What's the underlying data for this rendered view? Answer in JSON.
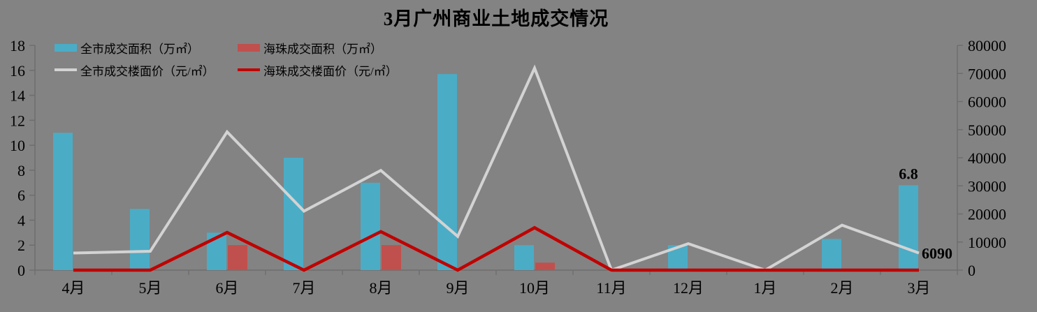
{
  "title": "3月广州商业土地成交情况",
  "colors": {
    "background": "#838383",
    "axis": "#6E6E6E",
    "text": "#000000",
    "citywide_area_bar": "#4BACC6",
    "haizhu_area_bar": "#C0504D",
    "citywide_price_line": "#D3D3D3",
    "haizhu_price_line": "#C00000"
  },
  "chart_data": {
    "type": "combo-bar-line",
    "categories": [
      "4月",
      "5月",
      "6月",
      "7月",
      "8月",
      "9月",
      "10月",
      "11月",
      "12月",
      "1月",
      "2月",
      "3月"
    ],
    "series": [
      {
        "name": "全市成交面积（万㎡）",
        "type": "bar",
        "axis": "left",
        "color": "#4BACC6",
        "values": [
          11,
          4.9,
          3,
          9,
          7,
          15.7,
          2,
          0,
          2,
          0,
          2.5,
          6.8
        ]
      },
      {
        "name": "海珠成交面积（万㎡）",
        "type": "bar",
        "axis": "left",
        "color": "#C0504D",
        "values": [
          0,
          0,
          2,
          0,
          2,
          0,
          0.6,
          0,
          0,
          0,
          0,
          0
        ]
      },
      {
        "name": "全市成交楼面价（元/㎡）",
        "type": "line",
        "axis": "right",
        "color": "#D3D3D3",
        "values": [
          6100,
          6700,
          49200,
          21000,
          35500,
          12000,
          71900,
          0,
          9400,
          0,
          16000,
          6090
        ]
      },
      {
        "name": "海珠成交楼面价（元/㎡）",
        "type": "line",
        "axis": "right",
        "color": "#C00000",
        "values": [
          0,
          0,
          13400,
          0,
          13700,
          0,
          15100,
          0,
          0,
          0,
          0,
          0
        ]
      }
    ],
    "left_axis": {
      "min": 0,
      "max": 18,
      "ticks": [
        0,
        2,
        4,
        6,
        8,
        10,
        12,
        14,
        16,
        18
      ]
    },
    "right_axis": {
      "min": 0,
      "max": 80000,
      "ticks": [
        0,
        10000,
        20000,
        30000,
        40000,
        50000,
        60000,
        70000,
        80000
      ]
    },
    "grid": false,
    "legend_position": "top-left",
    "annotations": [
      {
        "text": "6.8",
        "series": 0,
        "index": 11,
        "placement": "above-bar"
      },
      {
        "text": "6090",
        "series": 2,
        "index": 11,
        "placement": "line-end"
      }
    ]
  }
}
